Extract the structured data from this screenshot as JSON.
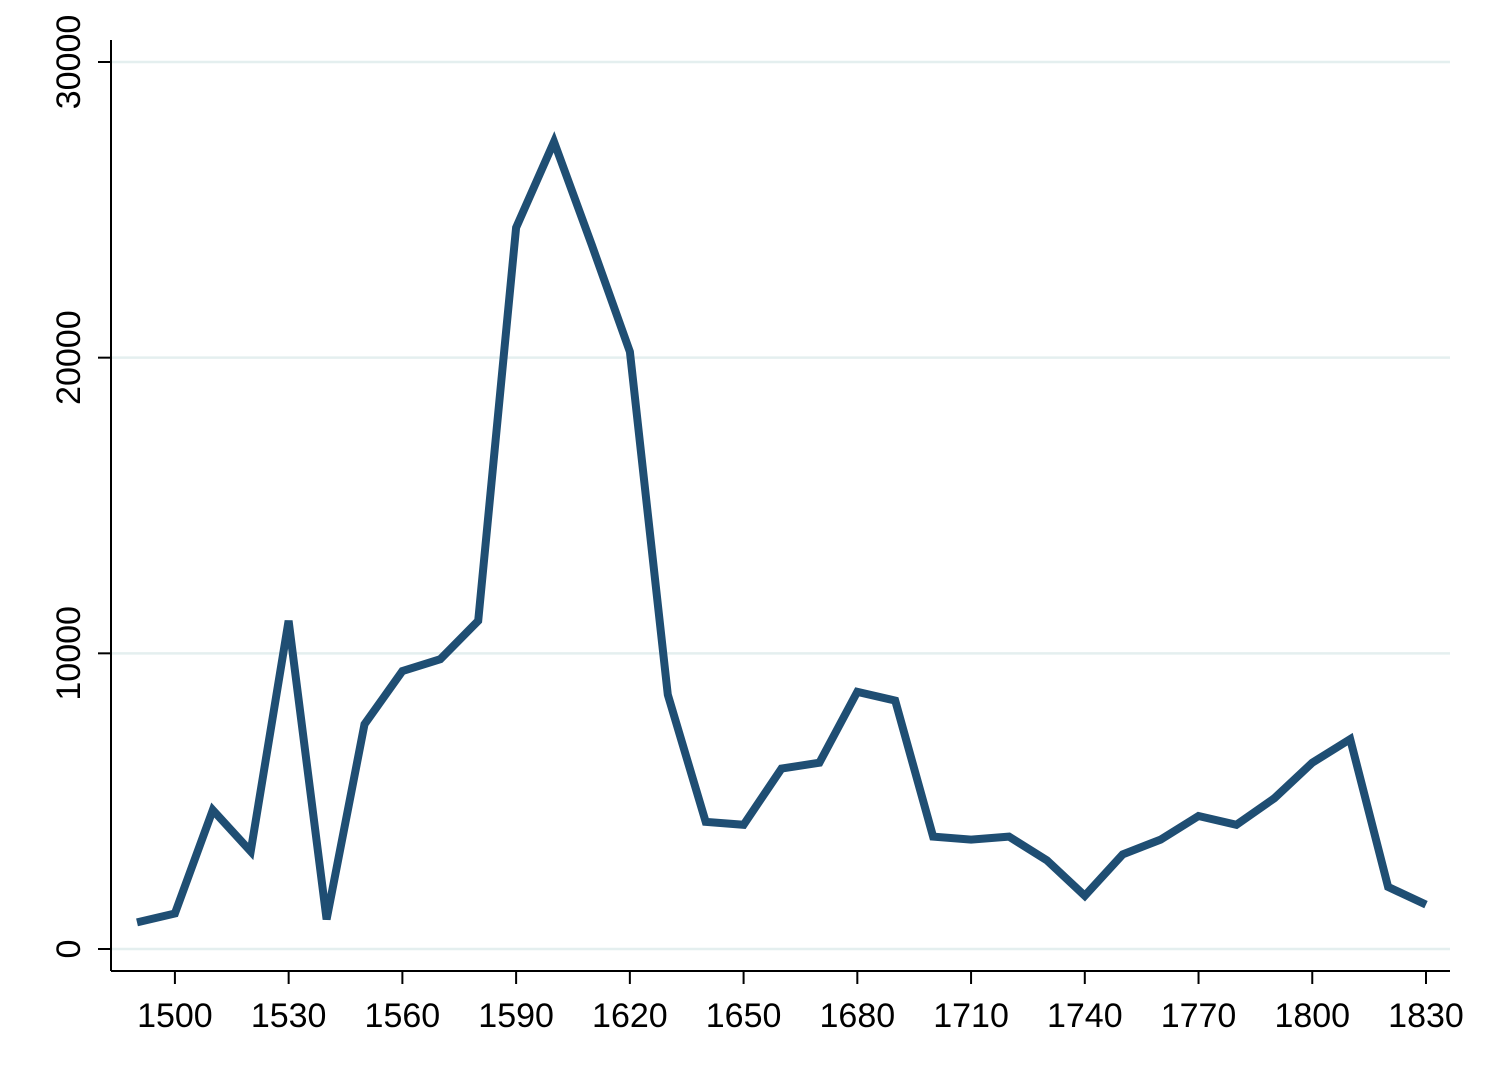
{
  "chart_data": {
    "type": "line",
    "title": "",
    "xlabel": "",
    "ylabel": "",
    "xlim": [
      1490,
      1830
    ],
    "ylim": [
      0,
      30000
    ],
    "x_ticks": [
      1500,
      1530,
      1560,
      1590,
      1620,
      1650,
      1680,
      1710,
      1740,
      1770,
      1800,
      1830
    ],
    "x_tick_labels": [
      "1500",
      "1530",
      "1560",
      "1590",
      "1620",
      "1650",
      "1680",
      "1710",
      "1740",
      "1770",
      "1800",
      "1830"
    ],
    "y_ticks": [
      0,
      10000,
      20000,
      30000
    ],
    "y_tick_labels": [
      "0",
      "10000",
      "20000",
      "30000"
    ],
    "y_tick_orientation": "rotated-vertical",
    "grid": "horizontal",
    "legend": "none",
    "x": [
      1490,
      1500,
      1510,
      1520,
      1530,
      1540,
      1550,
      1560,
      1570,
      1580,
      1590,
      1600,
      1610,
      1620,
      1630,
      1640,
      1650,
      1660,
      1670,
      1680,
      1690,
      1700,
      1710,
      1720,
      1730,
      1740,
      1750,
      1760,
      1770,
      1780,
      1790,
      1800,
      1810,
      1820,
      1830
    ],
    "series": [
      {
        "values": [
          900,
          1200,
          4700,
          3300,
          11100,
          1000,
          7600,
          9400,
          9800,
          11100,
          24400,
          27300,
          23800,
          20200,
          8600,
          4300,
          4200,
          6100,
          6300,
          8700,
          8400,
          3800,
          3700,
          3800,
          3000,
          1800,
          3200,
          3700,
          4500,
          4200,
          5100,
          6300,
          7100,
          2100,
          1500
        ]
      }
    ],
    "colors": {
      "line": "#1f4e73",
      "grid": "#e4efef",
      "axis": "#000000",
      "background": "#ffffff"
    }
  }
}
